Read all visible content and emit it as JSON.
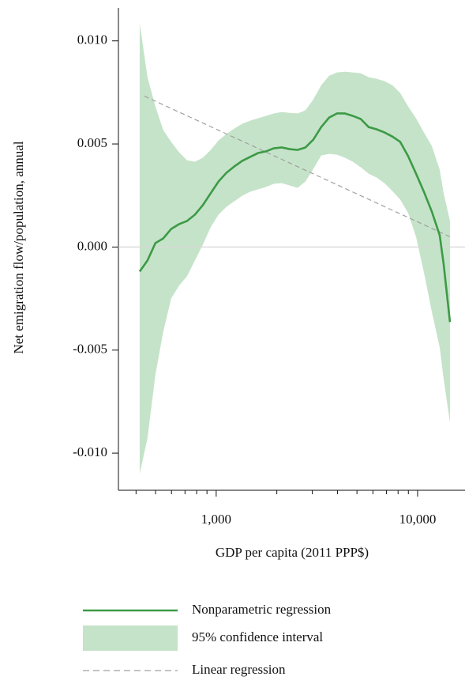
{
  "chart_data": {
    "type": "line",
    "xlabel": "GDP per capita (2011 PPP$)",
    "ylabel": "Net emigration flow/population, annual",
    "xscale": "log",
    "xlim": [
      327,
      17350
    ],
    "ylim": [
      -0.0118,
      0.0116
    ],
    "xticks": [
      {
        "value": 1000,
        "label": "1,000"
      },
      {
        "value": 10000,
        "label": "10,000"
      }
    ],
    "xminorticks": [
      400,
      500,
      600,
      700,
      800,
      900,
      2000,
      3000,
      4000,
      5000,
      6000,
      7000,
      8000,
      9000
    ],
    "yticks": [
      {
        "value": 0.01,
        "label": "0.010"
      },
      0.005,
      {
        "value": 0,
        "label": "0.000"
      },
      -0.005,
      {
        "value": -0.01,
        "label": "-0.010"
      }
    ],
    "reference_line": 0,
    "x": [
      417,
      456,
      499,
      546,
      598,
      654,
      716,
      784,
      858,
      939,
      1027,
      1124,
      1231,
      1347,
      1474,
      1614,
      1766,
      1933,
      2116,
      2316,
      2535,
      2774,
      3036,
      3323,
      3637,
      3981,
      4357,
      4769,
      5220,
      5713,
      6253,
      6844,
      7491,
      8199,
      8974,
      9822,
      10750,
      11766,
      12878,
      13472,
      14478
    ],
    "series": [
      {
        "name": "Nonparametric regression",
        "color": "#3d9a46",
        "style": "line",
        "values": [
          -0.00119,
          -0.00065,
          0.00019,
          0.00042,
          0.00088,
          0.00111,
          0.00126,
          0.00157,
          0.00203,
          0.00261,
          0.00318,
          0.0036,
          0.00391,
          0.00418,
          0.00437,
          0.00456,
          0.00464,
          0.00479,
          0.00483,
          0.00475,
          0.00471,
          0.00483,
          0.00521,
          0.00582,
          0.00628,
          0.00648,
          0.00648,
          0.00636,
          0.00621,
          0.00582,
          0.00571,
          0.00556,
          0.00536,
          0.0051,
          0.00441,
          0.00356,
          0.00268,
          0.00172,
          0.00057,
          -0.00084,
          -0.00364
        ]
      },
      {
        "name": "95% confidence interval",
        "color": "#c5e3c9",
        "style": "band",
        "upper": [
          0.01084,
          0.00824,
          0.00682,
          0.00567,
          0.0051,
          0.0046,
          0.00421,
          0.00414,
          0.00433,
          0.00471,
          0.00517,
          0.00548,
          0.00575,
          0.00598,
          0.00613,
          0.00625,
          0.00636,
          0.00648,
          0.00655,
          0.00651,
          0.00648,
          0.00663,
          0.00716,
          0.00785,
          0.00831,
          0.00847,
          0.0085,
          0.00847,
          0.00843,
          0.00824,
          0.00816,
          0.00805,
          0.00785,
          0.00747,
          0.00682,
          0.00625,
          0.00556,
          0.0049,
          0.00375,
          0.00261,
          0.00126
        ],
        "lower": [
          -0.011,
          -0.00927,
          -0.0062,
          -0.0041,
          -0.00249,
          -0.00188,
          -0.00142,
          -0.00065,
          0.00011,
          0.00096,
          0.00157,
          0.00195,
          0.00222,
          0.00249,
          0.00268,
          0.0028,
          0.00291,
          0.00307,
          0.0031,
          0.00299,
          0.00287,
          0.00318,
          0.00379,
          0.00444,
          0.00452,
          0.00448,
          0.00433,
          0.00414,
          0.00387,
          0.00356,
          0.00337,
          0.0031,
          0.00272,
          0.0023,
          0.00165,
          0.0005,
          -0.00123,
          -0.00314,
          -0.00487,
          -0.0064,
          -0.00851
        ]
      },
      {
        "name": "Linear regression",
        "color": "#a0a0a0",
        "style": "dashed",
        "x": [
          440,
          14478
        ],
        "values": [
          0.00732,
          0.0005
        ]
      }
    ]
  }
}
